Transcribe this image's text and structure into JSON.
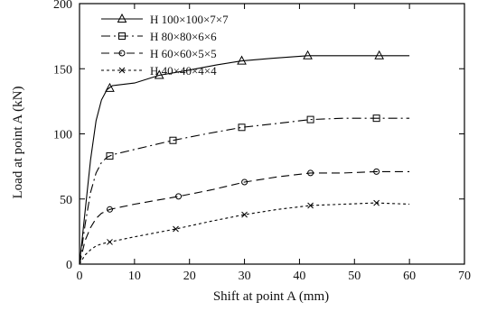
{
  "chart_data": {
    "type": "line",
    "xlabel": "Shift at point A (mm)",
    "ylabel": "Load at point A (kN)",
    "xlim": [
      0,
      70
    ],
    "ylim": [
      0,
      200
    ],
    "xticks": [
      0,
      10,
      20,
      30,
      40,
      50,
      60,
      70
    ],
    "yticks": [
      0,
      50,
      100,
      150,
      200
    ],
    "grid": false,
    "legend_position": "top-left",
    "series": [
      {
        "name": "H 100×100×7×7",
        "marker": "triangle",
        "dash": "solid",
        "points": [
          [
            0,
            0
          ],
          [
            1,
            40
          ],
          [
            2,
            80
          ],
          [
            3,
            110
          ],
          [
            4,
            126
          ],
          [
            5,
            134
          ],
          [
            6,
            137
          ],
          [
            10,
            139
          ],
          [
            14.5,
            145
          ],
          [
            20,
            149
          ],
          [
            25,
            153
          ],
          [
            29.5,
            156
          ],
          [
            35,
            158
          ],
          [
            41.5,
            160
          ],
          [
            48,
            160
          ],
          [
            54.5,
            160
          ],
          [
            60,
            160
          ]
        ],
        "marker_points": [
          [
            5.5,
            135
          ],
          [
            14.5,
            145
          ],
          [
            29.5,
            156
          ],
          [
            41.5,
            160
          ],
          [
            54.5,
            160
          ]
        ]
      },
      {
        "name": "H 80×80×6×6",
        "marker": "square",
        "dash": "dash-dot",
        "points": [
          [
            0,
            0
          ],
          [
            1,
            30
          ],
          [
            2,
            55
          ],
          [
            3,
            70
          ],
          [
            4,
            78
          ],
          [
            5,
            82
          ],
          [
            6,
            84
          ],
          [
            10,
            88
          ],
          [
            17,
            95
          ],
          [
            23,
            100
          ],
          [
            29.5,
            105
          ],
          [
            36,
            108
          ],
          [
            42,
            111
          ],
          [
            48,
            112
          ],
          [
            54,
            112
          ],
          [
            60,
            112
          ]
        ],
        "marker_points": [
          [
            5.5,
            83
          ],
          [
            17,
            95
          ],
          [
            29.5,
            105
          ],
          [
            42,
            111
          ],
          [
            54,
            112
          ]
        ]
      },
      {
        "name": "H 60×60×5×5",
        "marker": "circle",
        "dash": "dashed",
        "points": [
          [
            0,
            0
          ],
          [
            1,
            18
          ],
          [
            2,
            28
          ],
          [
            3,
            35
          ],
          [
            4,
            39
          ],
          [
            5.5,
            42
          ],
          [
            10,
            46
          ],
          [
            18,
            52
          ],
          [
            24,
            57
          ],
          [
            30,
            63
          ],
          [
            36,
            67
          ],
          [
            42,
            70
          ],
          [
            48,
            70
          ],
          [
            54,
            71
          ],
          [
            60,
            71
          ]
        ],
        "marker_points": [
          [
            5.5,
            42
          ],
          [
            18,
            52
          ],
          [
            30,
            63
          ],
          [
            42,
            70
          ],
          [
            54,
            71
          ]
        ]
      },
      {
        "name": "H 40×40×4×4",
        "marker": "cross",
        "dash": "dotted",
        "points": [
          [
            0,
            0
          ],
          [
            1,
            7
          ],
          [
            2,
            11
          ],
          [
            3,
            14
          ],
          [
            4,
            15.5
          ],
          [
            5.5,
            17
          ],
          [
            10,
            21
          ],
          [
            17.5,
            27
          ],
          [
            24,
            33
          ],
          [
            30,
            38
          ],
          [
            36,
            42
          ],
          [
            42,
            45
          ],
          [
            48,
            46
          ],
          [
            54,
            47
          ],
          [
            60,
            46
          ]
        ],
        "marker_points": [
          [
            5.5,
            17
          ],
          [
            17.5,
            27
          ],
          [
            30,
            38
          ],
          [
            42,
            45
          ],
          [
            54,
            47
          ]
        ]
      }
    ]
  }
}
